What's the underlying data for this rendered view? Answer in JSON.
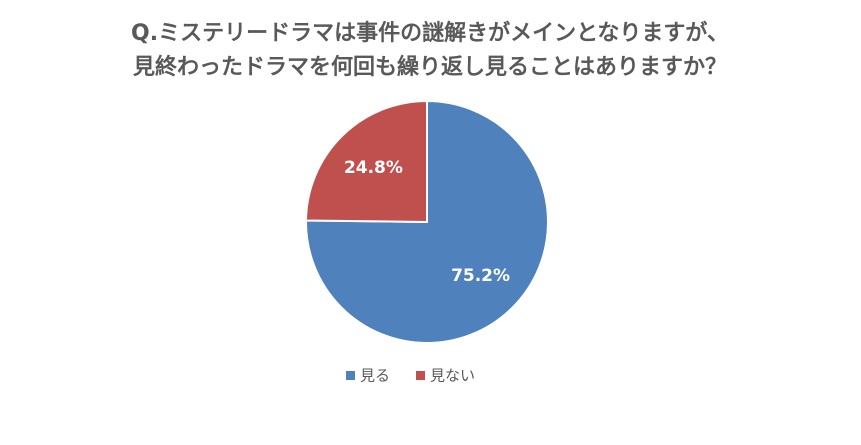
{
  "chart_data": {
    "type": "pie",
    "title": [
      "Q.ミステリードラマは事件の謎解きがメインとなりますが、",
      "見終わったドラマを何回も繰り返し見ることはありますか？"
    ],
    "categories": [
      "見る",
      "見ない"
    ],
    "values": [
      75.2,
      24.8
    ],
    "value_labels": [
      "75.2%",
      "24.8%"
    ],
    "colors": [
      "#4f81bd",
      "#c0504d"
    ],
    "legend": "bottom"
  }
}
